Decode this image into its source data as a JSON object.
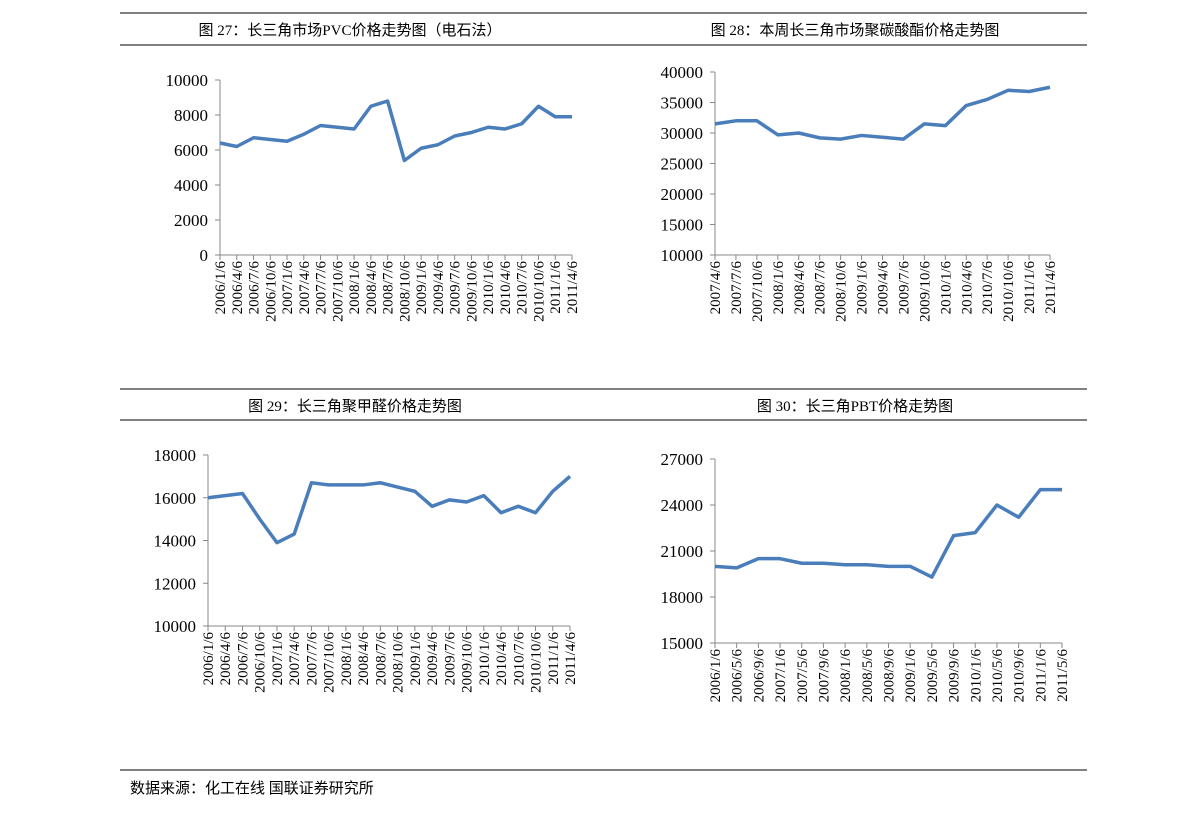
{
  "chart_data": [
    {
      "type": "line",
      "title": "图 27：长三角市场PVC价格走势图（电石法）",
      "categories": [
        "2006/1/6",
        "2006/4/6",
        "2006/7/6",
        "2006/10/6",
        "2007/1/6",
        "2007/4/6",
        "2007/7/6",
        "2007/10/6",
        "2008/1/6",
        "2008/4/6",
        "2008/7/6",
        "2008/10/6",
        "2009/1/6",
        "2009/4/6",
        "2009/7/6",
        "2009/10/6",
        "2010/1/6",
        "2010/4/6",
        "2010/7/6",
        "2010/10/6",
        "2011/1/6",
        "2011/4/6"
      ],
      "values": [
        6400,
        6200,
        6700,
        6600,
        6500,
        6900,
        7400,
        7300,
        7200,
        8500,
        8800,
        5400,
        6100,
        6300,
        6800,
        7000,
        7300,
        7200,
        7500,
        8500,
        7900,
        7900
      ],
      "color": "#4a7ebb",
      "ylim": [
        0,
        10000
      ],
      "yticks": [
        0,
        2000,
        4000,
        6000,
        8000,
        10000
      ]
    },
    {
      "type": "line",
      "title": "图 28：本周长三角市场聚碳酸酯价格走势图",
      "categories": [
        "2007/4/6",
        "2007/7/6",
        "2007/10/6",
        "2008/1/6",
        "2008/4/6",
        "2008/7/6",
        "2008/10/6",
        "2009/1/6",
        "2009/4/6",
        "2009/7/6",
        "2009/10/6",
        "2010/1/6",
        "2010/4/6",
        "2010/7/6",
        "2010/10/6",
        "2011/1/6",
        "2011/4/6"
      ],
      "values": [
        31500,
        32000,
        32000,
        29700,
        30000,
        29200,
        29000,
        29600,
        29300,
        29000,
        31500,
        31200,
        34500,
        35500,
        37000,
        36800,
        37500
      ],
      "color": "#4a7ebb",
      "ylim": [
        10000,
        40000
      ],
      "yticks": [
        10000,
        15000,
        20000,
        25000,
        30000,
        35000,
        40000
      ]
    },
    {
      "type": "line",
      "title": "图 29：长三角聚甲醛价格走势图",
      "categories": [
        "2006/1/6",
        "2006/4/6",
        "2006/7/6",
        "2006/10/6",
        "2007/1/6",
        "2007/4/6",
        "2007/7/6",
        "2007/10/6",
        "2008/1/6",
        "2008/4/6",
        "2008/7/6",
        "2008/10/6",
        "2009/1/6",
        "2009/4/6",
        "2009/7/6",
        "2009/10/6",
        "2010/1/6",
        "2010/4/6",
        "2010/7/6",
        "2010/10/6",
        "2011/1/6",
        "2011/4/6"
      ],
      "values": [
        16000,
        16100,
        16200,
        15000,
        13900,
        14300,
        16700,
        16600,
        16600,
        16600,
        16700,
        16500,
        16300,
        15600,
        15900,
        15800,
        16100,
        15300,
        15600,
        15300,
        16300,
        17000
      ],
      "color": "#4a7ebb",
      "ylim": [
        10000,
        18000
      ],
      "yticks": [
        10000,
        12000,
        14000,
        16000,
        18000
      ]
    },
    {
      "type": "line",
      "title": "图 30：长三角PBT价格走势图",
      "categories": [
        "2006/1/6",
        "2006/5/6",
        "2006/9/6",
        "2007/1/6",
        "2007/5/6",
        "2007/9/6",
        "2008/1/6",
        "2008/5/6",
        "2008/9/6",
        "2009/1/6",
        "2009/5/6",
        "2009/9/6",
        "2010/1/6",
        "2010/5/6",
        "2010/9/6",
        "2011/1/6",
        "2011/5/6"
      ],
      "values": [
        20000,
        19900,
        20500,
        20500,
        20200,
        20200,
        20100,
        20100,
        20000,
        20000,
        19300,
        22000,
        22200,
        24000,
        23200,
        25000,
        25000
      ],
      "color": "#4a7ebb",
      "ylim": [
        15000,
        27000
      ],
      "yticks": [
        15000,
        18000,
        21000,
        24000,
        27000
      ]
    }
  ],
  "source": "数据来源：化工在线  国联证券研究所"
}
